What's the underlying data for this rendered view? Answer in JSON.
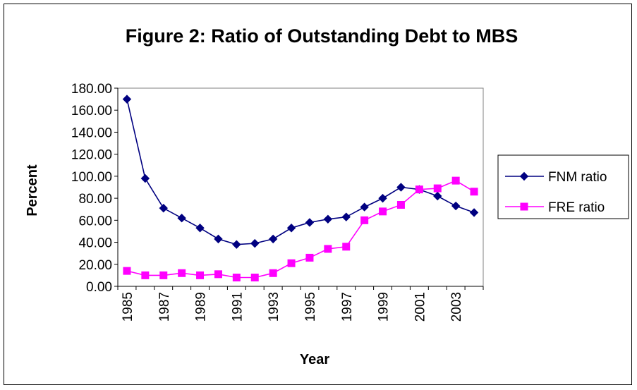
{
  "chart_data": {
    "type": "line",
    "title": "Figure 2:  Ratio of Outstanding Debt to MBS",
    "xlabel": "Year",
    "ylabel": "Percent",
    "ylim": [
      0,
      180
    ],
    "yticks": [
      "0.00",
      "20.00",
      "40.00",
      "60.00",
      "80.00",
      "100.00",
      "120.00",
      "140.00",
      "160.00",
      "180.00"
    ],
    "x": [
      1985,
      1986,
      1987,
      1988,
      1989,
      1990,
      1991,
      1992,
      1993,
      1994,
      1995,
      1996,
      1997,
      1998,
      1999,
      2000,
      2001,
      2002,
      2003,
      2004
    ],
    "xtick_labels": [
      "1985",
      "1987",
      "1989",
      "1991",
      "1993",
      "1995",
      "1997",
      "1999",
      "2001",
      "2003"
    ],
    "grid": false,
    "legend_position": "right",
    "series": [
      {
        "name": "FNM ratio",
        "color": "#000080",
        "marker": "diamond",
        "values": [
          170,
          98,
          71,
          62,
          53,
          43,
          38,
          39,
          43,
          53,
          58,
          61,
          63,
          72,
          80,
          90,
          88,
          82,
          73,
          67
        ]
      },
      {
        "name": "FRE ratio",
        "color": "#ff00ff",
        "marker": "square",
        "values": [
          14,
          10,
          10,
          12,
          10,
          11,
          8,
          8,
          12,
          21,
          26,
          34,
          36,
          60,
          68,
          74,
          88,
          89,
          96,
          86
        ]
      }
    ]
  }
}
